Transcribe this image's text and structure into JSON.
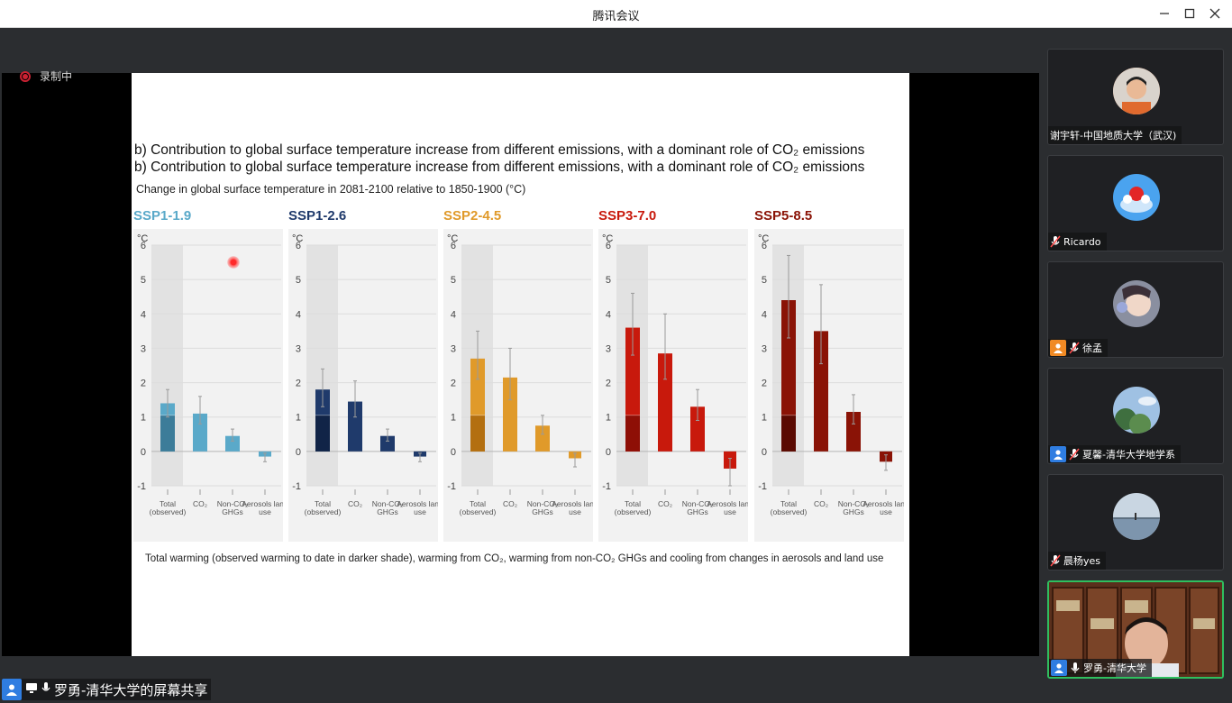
{
  "window": {
    "title": "腾讯会议",
    "buttons": [
      "minimize",
      "maximize",
      "close"
    ]
  },
  "recording": {
    "label": "录制中"
  },
  "slide": {
    "heading_line1": "b) Contribution to global surface temperature increase from different emissions, with a dominant role of CO₂ emissions",
    "heading_line2": "b) Contribution to global surface temperature increase from different emissions, with a dominant role of CO₂ emissions",
    "subtitle": "Change in global surface temperature in 2081-2100 relative to 1850-1900 (°C)",
    "caption": "Total warming (observed warming to date in darker shade), warming from CO₂, warming from non-CO₂ GHGs and cooling from changes in aerosols and land use"
  },
  "chart_data": [
    {
      "type": "bar",
      "title": "SSP1-1.9",
      "color": "#5aa9c9",
      "dark": "#3c7c99",
      "ylabel": "°C",
      "ylim": [
        -1,
        6
      ],
      "categories": [
        "Total (observed)",
        "CO₂",
        "Non-CO₂ GHGs",
        "Aerosols land use"
      ],
      "values": [
        1.4,
        1.1,
        0.45,
        -0.15
      ],
      "observed": 1.05,
      "error_low": [
        1.0,
        0.8,
        0.3,
        -0.3
      ],
      "error_high": [
        1.8,
        1.6,
        0.65,
        -0.05
      ]
    },
    {
      "type": "bar",
      "title": "SSP1-2.6",
      "color": "#1f3a6b",
      "dark": "#112447",
      "ylabel": "°C",
      "ylim": [
        -1,
        6
      ],
      "categories": [
        "Total (observed)",
        "CO₂",
        "Non-CO₂ GHGs",
        "Aerosols land use"
      ],
      "values": [
        1.8,
        1.45,
        0.45,
        -0.15
      ],
      "observed": 1.05,
      "error_low": [
        1.3,
        1.0,
        0.3,
        -0.3
      ],
      "error_high": [
        2.4,
        2.05,
        0.65,
        -0.05
      ]
    },
    {
      "type": "bar",
      "title": "SSP2-4.5",
      "color": "#e09a2a",
      "dark": "#b36f10",
      "ylabel": "°C",
      "ylim": [
        -1,
        6
      ],
      "categories": [
        "Total (observed)",
        "CO₂",
        "Non-CO₂ GHGs",
        "Aerosols land use"
      ],
      "values": [
        2.7,
        2.15,
        0.75,
        -0.2
      ],
      "observed": 1.05,
      "error_low": [
        2.1,
        1.5,
        0.5,
        -0.45
      ],
      "error_high": [
        3.5,
        3.0,
        1.05,
        -0.05
      ]
    },
    {
      "type": "bar",
      "title": "SSP3-7.0",
      "color": "#c8190c",
      "dark": "#8e0f06",
      "ylabel": "°C",
      "ylim": [
        -1,
        6
      ],
      "categories": [
        "Total (observed)",
        "CO₂",
        "Non-CO₂ GHGs",
        "Aerosols land use"
      ],
      "values": [
        3.6,
        2.85,
        1.3,
        -0.5
      ],
      "observed": 1.05,
      "error_low": [
        2.8,
        2.1,
        0.9,
        -1.0
      ],
      "error_high": [
        4.6,
        4.0,
        1.8,
        -0.2
      ]
    },
    {
      "type": "bar",
      "title": "SSP5-8.5",
      "color": "#8a1306",
      "dark": "#5a0a02",
      "ylabel": "°C",
      "ylim": [
        -1,
        6
      ],
      "categories": [
        "Total (observed)",
        "CO₂",
        "Non-CO₂ GHGs",
        "Aerosols land use"
      ],
      "values": [
        4.4,
        3.5,
        1.15,
        -0.3
      ],
      "observed": 1.05,
      "error_low": [
        3.3,
        2.55,
        0.8,
        -0.55
      ],
      "error_high": [
        5.7,
        4.85,
        1.65,
        -0.1
      ]
    }
  ],
  "participants": [
    {
      "name": "谢宇轩-中国地质大学（武汉)",
      "role": "none",
      "mic": "none",
      "avatar_color": "#e06a2e"
    },
    {
      "name": "Ricardo",
      "role": "none",
      "mic": "muted",
      "avatar_color": "#3b8de0"
    },
    {
      "name": "徐孟",
      "role": "cohost",
      "mic": "muted",
      "avatar_color": "#b8a89a"
    },
    {
      "name": "夏馨-清华大学地学系",
      "role": "host",
      "mic": "muted",
      "avatar_color": "#6f9cc7"
    },
    {
      "name": "晨杨yes",
      "role": "none",
      "mic": "muted",
      "avatar_color": "#8fa7bb"
    },
    {
      "name": "罗勇-清华大学",
      "role": "host",
      "mic": "on",
      "avatar_color": "#6b3b22"
    }
  ],
  "sharing_bar": {
    "label": "罗勇-清华大学的屏幕共享"
  }
}
